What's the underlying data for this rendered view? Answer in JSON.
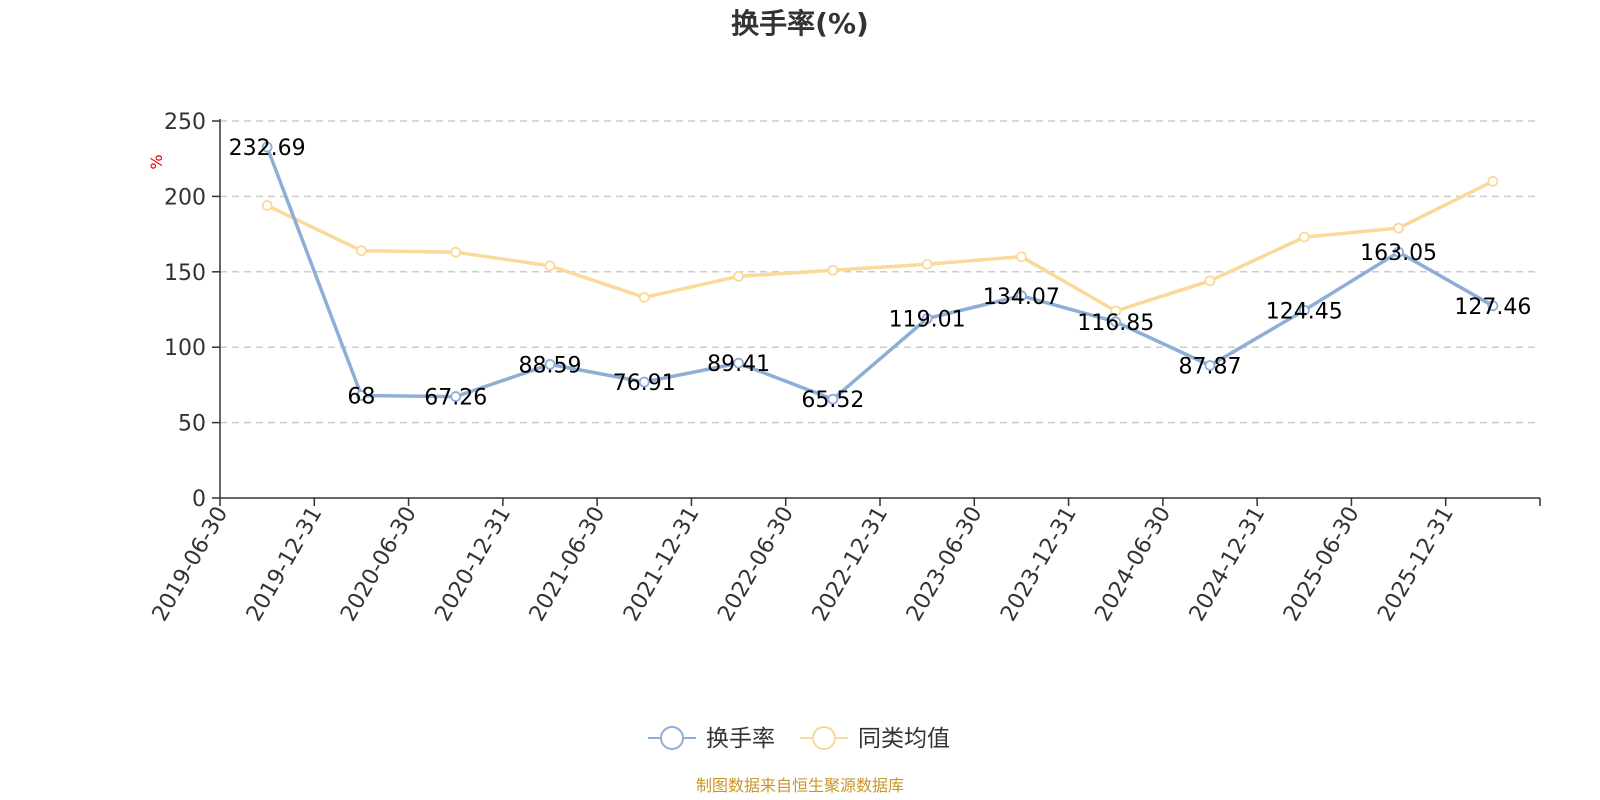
{
  "chart_data": {
    "type": "line",
    "title": "换手率(%)",
    "ylabel": "%",
    "xlabel": "",
    "ylim": [
      0,
      250
    ],
    "yticks": [
      0,
      50,
      100,
      150,
      200,
      250
    ],
    "grid": true,
    "legend_position": "bottom-center",
    "categories": [
      "2019-06-30",
      "2019-12-31",
      "2020-06-30",
      "2020-12-31",
      "2021-06-30",
      "2021-12-31",
      "2022-06-30",
      "2022-12-31",
      "2023-06-30",
      "2023-12-31",
      "2024-06-30",
      "2024-12-31",
      "2025-06-30",
      "2025-12-31"
    ],
    "series": [
      {
        "name": "换手率",
        "color": "#8eaed8",
        "labels": [
          "232.69",
          "68",
          "67.26",
          "88.59",
          "76.91",
          "89.41",
          "65.52",
          "119.01",
          "134.07",
          "116.85",
          "87.87",
          "124.45",
          "163.05",
          "127.46"
        ],
        "values": [
          232.69,
          68,
          67.26,
          88.59,
          76.91,
          89.41,
          65.52,
          119.01,
          134.07,
          116.85,
          87.87,
          124.45,
          163.05,
          127.46
        ]
      },
      {
        "name": "同类均值",
        "color": "#fad99a",
        "values": [
          194,
          164,
          163,
          154,
          133,
          147,
          151,
          155,
          160,
          124,
          144,
          173,
          179,
          210
        ]
      }
    ],
    "source": "制图数据来自恒生聚源数据库"
  }
}
